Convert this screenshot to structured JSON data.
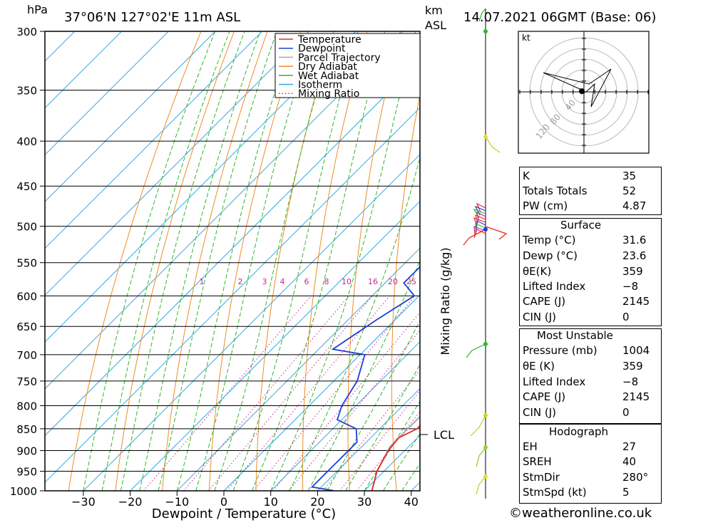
{
  "header": {
    "location": "37°06'N  127°02'E  11m  ASL",
    "datetime": "14.07.2021  06GMT  (Base: 06)",
    "hpa_label": "hPa",
    "km_label": "km",
    "asl_label": "ASL"
  },
  "chart_data": {
    "type": "line",
    "title": "",
    "xlabel": "Dewpoint / Temperature (°C)",
    "ylabel": "hPa",
    "secondary_ylabel": "Mixing Ratio (g/kg)",
    "x_ticks": [
      "−30",
      "−20",
      "−10",
      "0",
      "10",
      "20",
      "30",
      "40"
    ],
    "y_ticks": [
      "300",
      "350",
      "400",
      "450",
      "500",
      "550",
      "600",
      "650",
      "700",
      "750",
      "800",
      "850",
      "900",
      "950",
      "1000"
    ],
    "lcl_label": "LCL",
    "lcl_pressure": 890,
    "mixing_ratio_labels": [
      "1",
      "2",
      "3",
      "4",
      "6",
      "8",
      "10",
      "16",
      "20",
      "25"
    ],
    "series": [
      {
        "name": "Temperature",
        "color": "#e8282c",
        "points": [
          [
            300,
            9
          ],
          [
            330,
            9.7
          ],
          [
            360,
            10.5
          ],
          [
            380,
            11
          ],
          [
            400,
            12.5
          ],
          [
            430,
            13
          ],
          [
            460,
            12
          ],
          [
            480,
            11
          ],
          [
            500,
            12.5
          ],
          [
            550,
            16
          ],
          [
            600,
            19
          ],
          [
            650,
            21.5
          ],
          [
            700,
            24
          ],
          [
            750,
            26
          ],
          [
            800,
            27.5
          ],
          [
            850,
            28
          ],
          [
            870,
            26
          ],
          [
            900,
            26.5
          ],
          [
            950,
            28.5
          ],
          [
            1000,
            31.6
          ]
        ]
      },
      {
        "name": "Dewpoint",
        "color": "#1e3fd6",
        "points": [
          [
            300,
            -2
          ],
          [
            320,
            -1
          ],
          [
            350,
            2
          ],
          [
            370,
            4
          ],
          [
            390,
            -1
          ],
          [
            400,
            1
          ],
          [
            420,
            2
          ],
          [
            430,
            0
          ],
          [
            445,
            1
          ],
          [
            455,
            -1
          ],
          [
            470,
            0
          ],
          [
            480,
            -3
          ],
          [
            500,
            -4
          ],
          [
            550,
            -6
          ],
          [
            580,
            -6
          ],
          [
            600,
            -1
          ],
          [
            640,
            -4
          ],
          [
            690,
            -7
          ],
          [
            700,
            1
          ],
          [
            750,
            5
          ],
          [
            800,
            7
          ],
          [
            830,
            9
          ],
          [
            850,
            15
          ],
          [
            880,
            18
          ],
          [
            900,
            18
          ],
          [
            950,
            18
          ],
          [
            990,
            18
          ],
          [
            1000,
            23.6
          ]
        ]
      },
      {
        "name": "Parcel Trajectory",
        "color": "#a8a8a8",
        "points": [
          [
            380,
            19
          ],
          [
            420,
            20.5
          ],
          [
            460,
            21.5
          ],
          [
            500,
            22.5
          ],
          [
            550,
            23.5
          ],
          [
            600,
            24.5
          ],
          [
            650,
            25
          ],
          [
            700,
            25.5
          ],
          [
            750,
            25.5
          ],
          [
            800,
            26
          ],
          [
            850,
            26
          ],
          [
            890,
            26
          ],
          [
            950,
            28.5
          ],
          [
            1000,
            31.6
          ]
        ]
      }
    ],
    "legend": {
      "position": "top-right",
      "items": [
        {
          "label": "Temperature",
          "color": "#e8282c",
          "style": "solid"
        },
        {
          "label": "Dewpoint",
          "color": "#1e3fd6",
          "style": "solid"
        },
        {
          "label": "Parcel Trajectory",
          "color": "#a8a8a8",
          "style": "solid"
        },
        {
          "label": "Dry Adiabat",
          "color": "#f08c24",
          "style": "solid"
        },
        {
          "label": "Wet Adiabat",
          "color": "#2cb82c",
          "style": "solid"
        },
        {
          "label": "Isotherm",
          "color": "#36a8e0",
          "style": "solid"
        },
        {
          "label": "Mixing Ratio",
          "color": "#c8288c",
          "style": "dotted"
        }
      ]
    }
  },
  "hodograph": {
    "unit_label": "kt",
    "ring_labels": [
      "40",
      "80",
      "120"
    ]
  },
  "indices": {
    "basic": [
      {
        "label": "K",
        "value": "35"
      },
      {
        "label": "Totals Totals",
        "value": "52"
      },
      {
        "label": "PW (cm)",
        "value": "4.87"
      }
    ],
    "surface": {
      "title": "Surface",
      "rows": [
        {
          "label": "Temp (°C)",
          "value": "31.6"
        },
        {
          "label": "Dewp (°C)",
          "value": "23.6"
        },
        {
          "label": "θE(K)",
          "value": "359"
        },
        {
          "label": "Lifted Index",
          "value": "−8"
        },
        {
          "label": "CAPE (J)",
          "value": "2145"
        },
        {
          "label": "CIN (J)",
          "value": "0"
        }
      ]
    },
    "most_unstable": {
      "title": "Most Unstable",
      "rows": [
        {
          "label": "Pressure (mb)",
          "value": "1004"
        },
        {
          "label": "θE (K)",
          "value": "359"
        },
        {
          "label": "Lifted Index",
          "value": "−8"
        },
        {
          "label": "CAPE (J)",
          "value": "2145"
        },
        {
          "label": "CIN (J)",
          "value": "0"
        }
      ]
    },
    "hodograph_params": {
      "title": "Hodograph",
      "rows": [
        {
          "label": "EH",
          "value": "27"
        },
        {
          "label": "SREH",
          "value": "40"
        },
        {
          "label": "StmDir",
          "value": "280°"
        },
        {
          "label": "StmSpd (kt)",
          "value": "5"
        }
      ]
    }
  },
  "footer": {
    "credit": "©weatheronline.co.uk"
  }
}
